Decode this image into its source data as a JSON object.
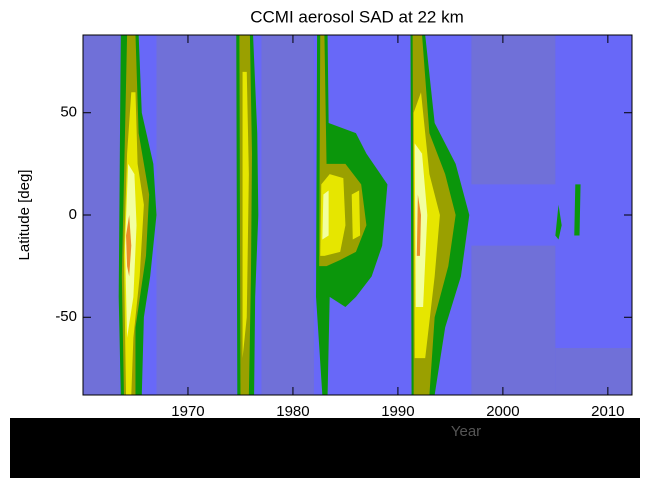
{
  "chart_data": {
    "type": "contour",
    "title": "CCMI aerosol SAD at 22 km",
    "ylabel": "Latitude [deg]",
    "xlabel": "Year",
    "xlim": [
      1960,
      2012.3
    ],
    "ylim": [
      -88,
      88
    ],
    "xticks": [
      1970,
      1980,
      1990,
      2000,
      2010
    ],
    "yticks": [
      -50,
      0,
      50
    ],
    "background": "#6868f8",
    "level_colors": [
      "#7070d8",
      "#6868f8",
      "#0b960b",
      "#9aa000",
      "#e6e600",
      "#f2ffa0",
      "#e88c28"
    ],
    "contours": [
      {
        "level": 0,
        "x": [
          1960,
          1960,
          1963.5,
          1963.5
        ],
        "y": [
          -88,
          88,
          88,
          -88
        ]
      },
      {
        "level": 0,
        "x": [
          1967,
          1967,
          1974.6,
          1974.6
        ],
        "y": [
          -88,
          88,
          88,
          -88
        ]
      },
      {
        "level": 0,
        "x": [
          1977,
          1977,
          1982,
          1982
        ],
        "y": [
          -88,
          88,
          88,
          -88
        ]
      },
      {
        "level": 0,
        "x": [
          1997,
          1997,
          2005,
          2005
        ],
        "y": [
          15,
          88,
          88,
          15
        ]
      },
      {
        "level": 0,
        "x": [
          1997,
          1997,
          2005,
          2005
        ],
        "y": [
          -88,
          -15,
          -15,
          -88
        ]
      },
      {
        "level": 0,
        "x": [
          2005,
          2005,
          2012.3,
          2012.3
        ],
        "y": [
          -88,
          -65,
          -65,
          -88
        ]
      },
      {
        "level": 2,
        "x": [
          1963.6,
          1963.4,
          1963.6,
          1965.3,
          1965.6,
          1966.7,
          1967,
          1966.4,
          1965.8,
          1965.6
        ],
        "y": [
          -88,
          -40,
          88,
          88,
          50,
          25,
          0,
          -30,
          -50,
          -88
        ]
      },
      {
        "level": 3,
        "x": [
          1963.9,
          1963.7,
          1964,
          1964.2,
          1965,
          1965.3,
          1966.3,
          1966,
          1965,
          1965
        ],
        "y": [
          -88,
          -30,
          40,
          88,
          88,
          40,
          10,
          -20,
          -55,
          -88
        ]
      },
      {
        "level": 4,
        "x": [
          1964.1,
          1963.9,
          1964.2,
          1964.6,
          1965,
          1965.2,
          1965.8,
          1965.4,
          1964.8,
          1964.6
        ],
        "y": [
          -88,
          -20,
          30,
          60,
          60,
          25,
          5,
          -30,
          -60,
          -88
        ]
      },
      {
        "level": 5,
        "x": [
          1964.2,
          1964,
          1964.3,
          1964.9,
          1965.1,
          1964.8
        ],
        "y": [
          -60,
          -15,
          25,
          20,
          -5,
          -40
        ]
      },
      {
        "level": 6,
        "x": [
          1964.2,
          1964.1,
          1964.4,
          1964.6,
          1964.4
        ],
        "y": [
          -25,
          -10,
          0,
          -15,
          -30
        ]
      },
      {
        "level": 2,
        "x": [
          1974.7,
          1974.6,
          1976.2,
          1976.6,
          1976.7,
          1976.4,
          1976.3
        ],
        "y": [
          -88,
          88,
          88,
          40,
          0,
          -40,
          -88
        ]
      },
      {
        "level": 3,
        "x": [
          1975,
          1974.9,
          1975.9,
          1976.1,
          1976,
          1975.8
        ],
        "y": [
          -88,
          88,
          88,
          30,
          -30,
          -88
        ]
      },
      {
        "level": 4,
        "x": [
          1975.2,
          1975.2,
          1975.6,
          1975.8,
          1975.6
        ],
        "y": [
          -70,
          70,
          70,
          20,
          -50
        ]
      },
      {
        "level": 2,
        "x": [
          1982.2,
          1982.3,
          1983.3,
          1983.4,
          1986,
          1987,
          1989,
          1988.5,
          1987.5,
          1986,
          1985,
          1983.5,
          1983.3,
          1982.8
        ],
        "y": [
          -40,
          88,
          88,
          45,
          40,
          30,
          15,
          -15,
          -30,
          -40,
          -45,
          -40,
          -88,
          -88
        ]
      },
      {
        "level": 3,
        "x": [
          1982.5,
          1982.6,
          1983,
          1983.2,
          1985,
          1986.5,
          1987,
          1986,
          1984.5,
          1983.2
        ],
        "y": [
          -25,
          88,
          88,
          25,
          25,
          15,
          -5,
          -18,
          -22,
          -25
        ]
      },
      {
        "level": 4,
        "x": [
          1982.6,
          1982.7,
          1983.5,
          1984.8,
          1985,
          1984.5,
          1983
        ],
        "y": [
          -20,
          15,
          20,
          18,
          -5,
          -18,
          -20
        ]
      },
      {
        "level": 4,
        "x": [
          1985.6,
          1986.3,
          1986.4,
          1985.7
        ],
        "y": [
          10,
          12,
          -10,
          -12
        ]
      },
      {
        "level": 5,
        "x": [
          1982.8,
          1982.9,
          1983.4,
          1983.4
        ],
        "y": [
          -12,
          10,
          12,
          -10
        ]
      },
      {
        "level": 2,
        "x": [
          1991.3,
          1991.2,
          1992.6,
          1993.5,
          1995.5,
          1996.8,
          1996,
          1994.5,
          1993.5
        ],
        "y": [
          -88,
          88,
          88,
          45,
          25,
          0,
          -30,
          -55,
          -88
        ]
      },
      {
        "level": 3,
        "x": [
          1991.5,
          1991.4,
          1992.3,
          1993,
          1994.5,
          1995.5,
          1994.8,
          1993.5,
          1993
        ],
        "y": [
          -88,
          88,
          88,
          40,
          20,
          0,
          -25,
          -50,
          -88
        ]
      },
      {
        "level": 4,
        "x": [
          1991.6,
          1991.5,
          1992.2,
          1993,
          1994,
          1993.5,
          1992.6
        ],
        "y": [
          -70,
          50,
          60,
          20,
          0,
          -30,
          -70
        ]
      },
      {
        "level": 5,
        "x": [
          1991.7,
          1991.6,
          1992.3,
          1992.8,
          1992.4
        ],
        "y": [
          -45,
          35,
          30,
          0,
          -45
        ]
      },
      {
        "level": 6,
        "x": [
          1991.8,
          1991.9,
          1992.2,
          1992.1
        ],
        "y": [
          -20,
          10,
          0,
          -20
        ]
      },
      {
        "level": 2,
        "x": [
          2005,
          2005.3,
          2005.6,
          2005.3
        ],
        "y": [
          -10,
          5,
          -5,
          -12
        ]
      },
      {
        "level": 2,
        "x": [
          2006.8,
          2006.9,
          2007.4,
          2007.3
        ],
        "y": [
          -10,
          15,
          15,
          -10
        ]
      }
    ]
  }
}
